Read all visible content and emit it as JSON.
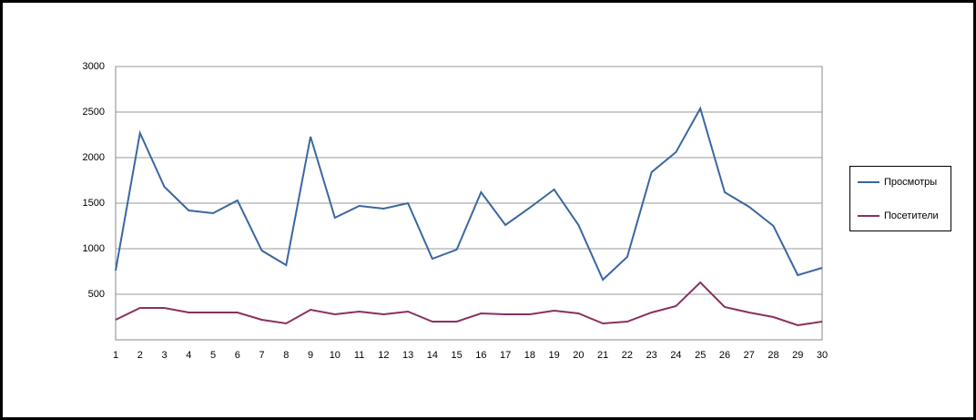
{
  "chart_data": {
    "type": "line",
    "categories": [
      "1",
      "2",
      "3",
      "4",
      "5",
      "6",
      "7",
      "8",
      "9",
      "10",
      "11",
      "12",
      "13",
      "14",
      "15",
      "16",
      "17",
      "18",
      "19",
      "20",
      "21",
      "22",
      "23",
      "24",
      "25",
      "26",
      "27",
      "28",
      "29",
      "30"
    ],
    "series": [
      {
        "name": "Просмотры",
        "color": "#3a67a0",
        "values": [
          760,
          2270,
          1680,
          1420,
          1390,
          1530,
          980,
          820,
          2230,
          1340,
          1470,
          1440,
          1500,
          890,
          990,
          1620,
          1260,
          1450,
          1650,
          1260,
          660,
          910,
          1840,
          2060,
          2540,
          1620,
          1460,
          1250,
          710,
          790
        ]
      },
      {
        "name": "Посетители",
        "color": "#8b3060",
        "values": [
          220,
          350,
          350,
          300,
          300,
          300,
          220,
          180,
          330,
          280,
          310,
          280,
          310,
          200,
          200,
          290,
          280,
          280,
          320,
          290,
          180,
          200,
          300,
          370,
          630,
          360,
          300,
          250,
          160,
          200
        ]
      }
    ],
    "ylim": [
      0,
      3000
    ],
    "yticks": [
      500,
      1000,
      1500,
      2000,
      2500,
      3000
    ],
    "grid": true,
    "legend": "right"
  }
}
